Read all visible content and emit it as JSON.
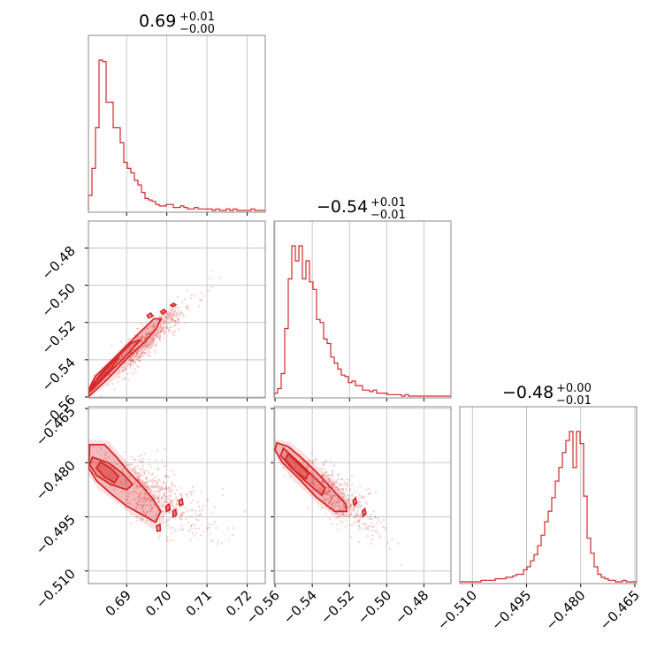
{
  "colors": {
    "series": "#d62728",
    "frame": "#888888",
    "grid": "#c8c8c8"
  },
  "titles": {
    "p0": {
      "base": "0.69",
      "sup": "+0.01",
      "sub": "−0.00"
    },
    "p1": {
      "base": "−0.54",
      "sup": "+0.01",
      "sub": "−0.01"
    },
    "p2": {
      "base": "−0.48",
      "sup": "+0.00",
      "sub": "−0.01"
    }
  },
  "chart_data": {
    "type": "corner",
    "parameters": [
      "p0",
      "p1",
      "p2"
    ],
    "axes": {
      "p0": {
        "range": [
          0.6805,
          0.7245
        ],
        "ticks": [
          0.69,
          0.7,
          0.71,
          0.72
        ],
        "tick_labels": [
          "0.69",
          "0.70",
          "0.71",
          "0.72"
        ]
      },
      "p1": {
        "range": [
          -0.5605,
          -0.4655
        ],
        "ticks": [
          -0.56,
          -0.54,
          -0.52,
          -0.5,
          -0.48
        ],
        "tick_labels": [
          "−0.56",
          "−0.54",
          "−0.52",
          "−0.50",
          "−0.48"
        ]
      },
      "p2": {
        "range": [
          -0.5135,
          -0.4645
        ],
        "ticks": [
          -0.51,
          -0.495,
          -0.48,
          -0.465
        ],
        "tick_labels": [
          "−0.510",
          "−0.495",
          "−0.480",
          "−0.465"
        ]
      }
    },
    "histograms": {
      "p0": {
        "x0": 0.6805,
        "x1": 0.7245,
        "counts": [
          10,
          28,
          55,
          100,
          99,
          72,
          72,
          55,
          55,
          45,
          32,
          28,
          25,
          20,
          17,
          12,
          8,
          7,
          6,
          4,
          3,
          3,
          4,
          4,
          2,
          2,
          3,
          2,
          1,
          1,
          2,
          1,
          1,
          1,
          1,
          0,
          1,
          0,
          0,
          1,
          0,
          1,
          0,
          0,
          0,
          0,
          1,
          0,
          0,
          0
        ]
      },
      "p1": {
        "x0": -0.5605,
        "x1": -0.4655,
        "counts": [
          2,
          5,
          15,
          45,
          78,
          100,
          90,
          100,
          78,
          90,
          76,
          71,
          51,
          49,
          38,
          35,
          26,
          22,
          18,
          14,
          13,
          9,
          10,
          7,
          7,
          4,
          4,
          3,
          4,
          2,
          2,
          2,
          1,
          1,
          1,
          1,
          0,
          1,
          0,
          0,
          0,
          0,
          0,
          0,
          0,
          0,
          0,
          0,
          0,
          0
        ]
      },
      "p2": {
        "x0": -0.5135,
        "x1": -0.4645,
        "counts": [
          0,
          0,
          0,
          0,
          0,
          0,
          1,
          1,
          1,
          1,
          2,
          2,
          2,
          3,
          3,
          4,
          5,
          5,
          8,
          10,
          14,
          18,
          24,
          31,
          40,
          47,
          56,
          67,
          76,
          86,
          94,
          100,
          76,
          100,
          92,
          57,
          29,
          19,
          10,
          5,
          3,
          2,
          1,
          1,
          0,
          0,
          1,
          0,
          0,
          0
        ]
      }
    },
    "scatter_clouds": {
      "p1_vs_p0": {
        "center": [
          0.6905,
          -0.539
        ],
        "spread": [
          0.0065,
          0.0135
        ],
        "corr": 0.95
      },
      "p2_vs_p0": {
        "center": [
          0.692,
          -0.486
        ],
        "spread": [
          0.008,
          0.006
        ],
        "corr": -0.7
      },
      "p2_vs_p1": {
        "center": [
          -0.535,
          -0.486
        ],
        "spread": [
          0.013,
          0.006
        ],
        "corr": -0.85
      }
    },
    "contours": {
      "p1_vs_p0": [
        {
          "level": 4,
          "pts": [
            [
              0.6812,
              -0.5555
            ],
            [
              0.6862,
              -0.5445
            ],
            [
              0.6878,
              -0.5395
            ],
            [
              0.6866,
              -0.5405
            ],
            [
              0.683,
              -0.549
            ],
            [
              0.6808,
              -0.5555
            ]
          ]
        },
        {
          "level": 3,
          "pts": [
            [
              0.681,
              -0.5572
            ],
            [
              0.6868,
              -0.5445
            ],
            [
              0.6905,
              -0.5365
            ],
            [
              0.6935,
              -0.529
            ],
            [
              0.6912,
              -0.531
            ],
            [
              0.6862,
              -0.542
            ],
            [
              0.6825,
              -0.551
            ],
            [
              0.6806,
              -0.557
            ]
          ]
        },
        {
          "level": 2,
          "pts": [
            [
              0.6807,
              -0.5595
            ],
            [
              0.6852,
              -0.5505
            ],
            [
              0.6905,
              -0.5385
            ],
            [
              0.6942,
              -0.531
            ],
            [
              0.6975,
              -0.523
            ],
            [
              0.6985,
              -0.518
            ],
            [
              0.6968,
              -0.518
            ],
            [
              0.6925,
              -0.527
            ],
            [
              0.687,
              -0.539
            ],
            [
              0.6822,
              -0.549
            ],
            [
              0.6805,
              -0.5565
            ]
          ]
        },
        {
          "level": 1,
          "pts": [
            [
              0.6806,
              -0.56
            ],
            [
              0.686,
              -0.5525
            ],
            [
              0.6925,
              -0.54
            ],
            [
              0.6975,
              -0.528
            ],
            [
              0.701,
              -0.52
            ],
            [
              0.7022,
              -0.514
            ],
            [
              0.7002,
              -0.514
            ],
            [
              0.6955,
              -0.521
            ],
            [
              0.689,
              -0.533
            ],
            [
              0.683,
              -0.546
            ],
            [
              0.6806,
              -0.553
            ]
          ]
        },
        {
          "level": 3,
          "pts": [
            [
              0.699,
              -0.5155
            ],
            [
              0.6998,
              -0.514
            ],
            [
              0.6993,
              -0.513
            ],
            [
              0.6985,
              -0.5142
            ]
          ]
        },
        {
          "level": 3,
          "pts": [
            [
              0.6955,
              -0.5175
            ],
            [
              0.6965,
              -0.5165
            ],
            [
              0.696,
              -0.515
            ],
            [
              0.6951,
              -0.5162
            ]
          ]
        },
        {
          "level": 3,
          "pts": [
            [
              0.7015,
              -0.5115
            ],
            [
              0.7022,
              -0.5105
            ],
            [
              0.7017,
              -0.5097
            ],
            [
              0.701,
              -0.5107
            ]
          ]
        }
      ],
      "p2_vs_p0": [
        {
          "level": 4,
          "pts": [
            [
              0.6835,
              -0.4798
            ],
            [
              0.686,
              -0.4815
            ],
            [
              0.688,
              -0.4838
            ],
            [
              0.687,
              -0.4855
            ],
            [
              0.6845,
              -0.484
            ],
            [
              0.6825,
              -0.4815
            ]
          ]
        },
        {
          "level": 3,
          "pts": [
            [
              0.6815,
              -0.4785
            ],
            [
              0.6855,
              -0.48
            ],
            [
              0.689,
              -0.483
            ],
            [
              0.6915,
              -0.486
            ],
            [
              0.69,
              -0.4875
            ],
            [
              0.686,
              -0.486
            ],
            [
              0.6825,
              -0.4835
            ],
            [
              0.6808,
              -0.4805
            ]
          ]
        },
        {
          "level": 2,
          "pts": [
            [
              0.6808,
              -0.475
            ],
            [
              0.6845,
              -0.475
            ],
            [
              0.6875,
              -0.4785
            ],
            [
              0.6905,
              -0.4825
            ],
            [
              0.6935,
              -0.486
            ],
            [
              0.6965,
              -0.49
            ],
            [
              0.6985,
              -0.4935
            ],
            [
              0.6972,
              -0.4965
            ],
            [
              0.694,
              -0.4945
            ],
            [
              0.69,
              -0.492
            ],
            [
              0.686,
              -0.4885
            ],
            [
              0.6825,
              -0.485
            ],
            [
              0.6806,
              -0.4815
            ]
          ]
        },
        {
          "level": 1,
          "pts": [
            [
              0.6806,
              -0.4735
            ],
            [
              0.6855,
              -0.474
            ],
            [
              0.6895,
              -0.479
            ],
            [
              0.693,
              -0.4835
            ],
            [
              0.6965,
              -0.4875
            ],
            [
              0.6992,
              -0.4915
            ],
            [
              0.6995,
              -0.4968
            ],
            [
              0.6965,
              -0.4985
            ],
            [
              0.6925,
              -0.4955
            ],
            [
              0.6875,
              -0.491
            ],
            [
              0.683,
              -0.4875
            ],
            [
              0.6806,
              -0.4835
            ]
          ]
        },
        {
          "level": 3,
          "pts": [
            [
              0.6998,
              -0.492
            ],
            [
              0.7006,
              -0.4915
            ],
            [
              0.7008,
              -0.493
            ],
            [
              0.6999,
              -0.4935
            ]
          ]
        },
        {
          "level": 3,
          "pts": [
            [
              0.7015,
              -0.4935
            ],
            [
              0.7022,
              -0.493
            ],
            [
              0.7024,
              -0.4945
            ],
            [
              0.7016,
              -0.495
            ]
          ]
        },
        {
          "level": 3,
          "pts": [
            [
              0.703,
              -0.4905
            ],
            [
              0.7038,
              -0.49
            ],
            [
              0.704,
              -0.4915
            ],
            [
              0.7032,
              -0.4918
            ]
          ]
        },
        {
          "level": 3,
          "pts": [
            [
              0.6975,
              -0.4975
            ],
            [
              0.6983,
              -0.4972
            ],
            [
              0.6984,
              -0.4988
            ],
            [
              0.6976,
              -0.499
            ]
          ]
        }
      ],
      "p2_vs_p1": [
        {
          "level": 4,
          "pts": [
            [
              -0.553,
              -0.4775
            ],
            [
              -0.547,
              -0.4805
            ],
            [
              -0.542,
              -0.483
            ],
            [
              -0.5435,
              -0.4845
            ],
            [
              -0.5495,
              -0.4822
            ],
            [
              -0.5545,
              -0.4792
            ]
          ]
        },
        {
          "level": 3,
          "pts": [
            [
              -0.5555,
              -0.476
            ],
            [
              -0.547,
              -0.48
            ],
            [
              -0.539,
              -0.484
            ],
            [
              -0.533,
              -0.487
            ],
            [
              -0.535,
              -0.489
            ],
            [
              -0.544,
              -0.485
            ],
            [
              -0.552,
              -0.481
            ],
            [
              -0.557,
              -0.478
            ]
          ]
        },
        {
          "level": 2,
          "pts": [
            [
              -0.559,
              -0.4745
            ],
            [
              -0.553,
              -0.4755
            ],
            [
              -0.545,
              -0.479
            ],
            [
              -0.537,
              -0.483
            ],
            [
              -0.529,
              -0.4875
            ],
            [
              -0.522,
              -0.4915
            ],
            [
              -0.5215,
              -0.4935
            ],
            [
              -0.528,
              -0.4935
            ],
            [
              -0.538,
              -0.4895
            ],
            [
              -0.548,
              -0.484
            ],
            [
              -0.556,
              -0.48
            ],
            [
              -0.56,
              -0.4765
            ]
          ]
        },
        {
          "level": 1,
          "pts": [
            [
              -0.56,
              -0.4735
            ],
            [
              -0.552,
              -0.4742
            ],
            [
              -0.543,
              -0.478
            ],
            [
              -0.533,
              -0.483
            ],
            [
              -0.524,
              -0.488
            ],
            [
              -0.519,
              -0.4915
            ],
            [
              -0.5185,
              -0.4945
            ],
            [
              -0.526,
              -0.4955
            ],
            [
              -0.538,
              -0.491
            ],
            [
              -0.55,
              -0.485
            ],
            [
              -0.558,
              -0.48
            ],
            [
              -0.5602,
              -0.476
            ]
          ]
        },
        {
          "level": 3,
          "pts": [
            [
              -0.518,
              -0.4905
            ],
            [
              -0.5168,
              -0.4898
            ],
            [
              -0.5162,
              -0.4912
            ],
            [
              -0.5175,
              -0.4918
            ]
          ]
        },
        {
          "level": 3,
          "pts": [
            [
              -0.513,
              -0.4935
            ],
            [
              -0.5118,
              -0.4928
            ],
            [
              -0.5112,
              -0.4942
            ],
            [
              -0.5125,
              -0.4947
            ]
          ]
        }
      ]
    }
  }
}
